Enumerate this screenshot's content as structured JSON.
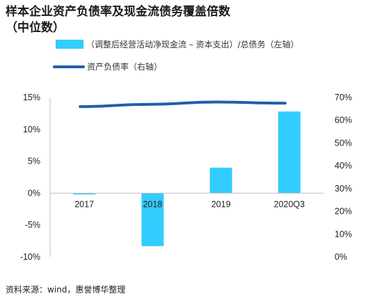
{
  "title": "样本企业资产负债率及现金流债务覆盖倍数\n（中位数）",
  "source": "资料来源：wind，惠誉博华整理",
  "colors": {
    "bar": "#33ccff",
    "line": "#1f5fa8"
  },
  "chart_data": {
    "type": "bar",
    "categories": [
      "2017",
      "2018",
      "2019",
      "2020Q3"
    ],
    "series": [
      {
        "name": "（调整后经营活动净现金流 – 资本支出）/总债务（左轴）",
        "type": "bar",
        "axis": "left",
        "values": [
          -0.2,
          -8.3,
          4.0,
          12.8
        ],
        "unit": "%"
      },
      {
        "name": "资产负债率（右轴）",
        "type": "line",
        "axis": "right",
        "values": [
          66,
          67,
          68,
          67.5
        ],
        "unit": "%"
      }
    ],
    "yleft": {
      "min": -10,
      "max": 15,
      "ticks": [
        "-10%",
        "-5%",
        "0%",
        "5%",
        "10%",
        "15%"
      ],
      "tick_values": [
        -10,
        -5,
        0,
        5,
        10,
        15
      ]
    },
    "yright": {
      "min": 0,
      "max": 70,
      "ticks": [
        "0%",
        "10%",
        "20%",
        "30%",
        "40%",
        "50%",
        "60%",
        "70%"
      ],
      "tick_values": [
        0,
        10,
        20,
        30,
        40,
        50,
        60,
        70
      ]
    },
    "grid": false,
    "legend_position": "top"
  }
}
